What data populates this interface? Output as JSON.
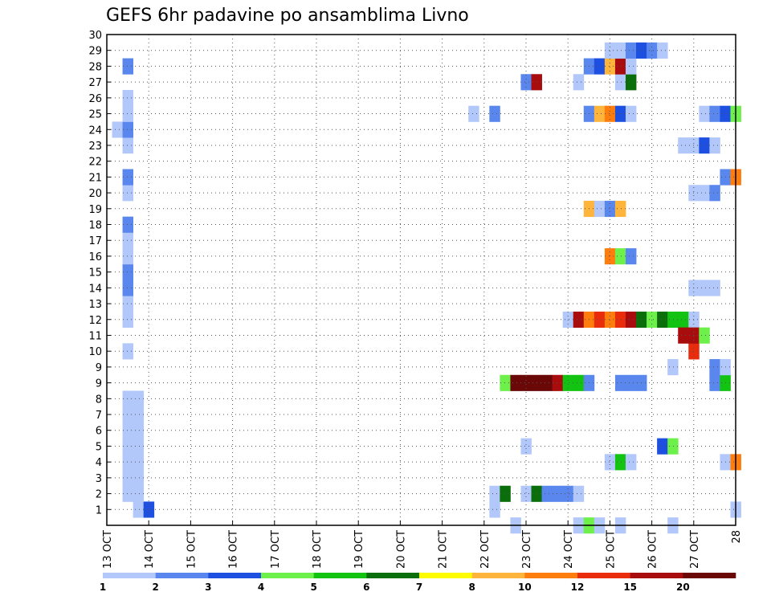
{
  "chart_data": {
    "type": "heatmap",
    "title": "GEFS 6hr padavine po ansamblima Livno",
    "x_labels": [
      "13 OCT",
      "14 OCT",
      "15 OCT",
      "16 OCT",
      "17 OCT",
      "18 OCT",
      "19 OCT",
      "20 OCT",
      "21 OCT",
      "22 OCT",
      "23 OCT",
      "24 OCT",
      "25 OCT",
      "26 OCT",
      "27 OCT",
      "28"
    ],
    "x_range": [
      0,
      60
    ],
    "y_labels": [
      "1",
      "2",
      "3",
      "4",
      "5",
      "6",
      "7",
      "8",
      "9",
      "9",
      "10",
      "11",
      "12",
      "13",
      "14",
      "15",
      "16",
      "17",
      "18",
      "19",
      "20",
      "21",
      "22",
      "23",
      "24",
      "25",
      "26",
      "27",
      "28",
      "29",
      "30"
    ],
    "y_range": [
      0,
      31
    ],
    "grid": true,
    "colorbar": {
      "labels": [
        "1",
        "2",
        "3",
        "4",
        "5",
        "6",
        "7",
        "8",
        "10",
        "12",
        "15",
        "20"
      ],
      "colors": [
        "#b3c8fa",
        "#5a87ee",
        "#1d4fe0",
        "#6ef04a",
        "#12c312",
        "#0a6e0a",
        "#fffc00",
        "#ffb43c",
        "#ff7d0c",
        "#e82c0c",
        "#a80c0c",
        "#6a0808"
      ]
    },
    "cells": [
      [
        3,
        1,
        1
      ],
      [
        4,
        1,
        3
      ],
      [
        2,
        2,
        1
      ],
      [
        3,
        2,
        1
      ],
      [
        2,
        3,
        1
      ],
      [
        3,
        3,
        1
      ],
      [
        2,
        4,
        1
      ],
      [
        3,
        4,
        1
      ],
      [
        2,
        5,
        1
      ],
      [
        3,
        5,
        1
      ],
      [
        2,
        6,
        1
      ],
      [
        3,
        6,
        1
      ],
      [
        2,
        7,
        1
      ],
      [
        3,
        7,
        1
      ],
      [
        2,
        8,
        1
      ],
      [
        3,
        8,
        1
      ],
      [
        2,
        11,
        1
      ],
      [
        2,
        13,
        1
      ],
      [
        2,
        14,
        1
      ],
      [
        2,
        15,
        2
      ],
      [
        2,
        16,
        2
      ],
      [
        2,
        17,
        1
      ],
      [
        2,
        18,
        1
      ],
      [
        2,
        19,
        2
      ],
      [
        2,
        21,
        1
      ],
      [
        2,
        22,
        2
      ],
      [
        2,
        24,
        1
      ],
      [
        1,
        25,
        1
      ],
      [
        2,
        25,
        2
      ],
      [
        2,
        26,
        1
      ],
      [
        2,
        27,
        1
      ],
      [
        2,
        29,
        2
      ],
      [
        39,
        0,
        1
      ],
      [
        37,
        1,
        1
      ],
      [
        37,
        2,
        1
      ],
      [
        38,
        2,
        6
      ],
      [
        40,
        2,
        1
      ],
      [
        41,
        2,
        6
      ],
      [
        42,
        2,
        2
      ],
      [
        43,
        2,
        2
      ],
      [
        44,
        2,
        2
      ],
      [
        45,
        2,
        1
      ],
      [
        40,
        5,
        1
      ],
      [
        38,
        9,
        4
      ],
      [
        39,
        9,
        12
      ],
      [
        40,
        9,
        12
      ],
      [
        41,
        9,
        12
      ],
      [
        42,
        9,
        12
      ],
      [
        43,
        9,
        11
      ],
      [
        44,
        9,
        5
      ],
      [
        45,
        9,
        5
      ],
      [
        46,
        9,
        2
      ],
      [
        49,
        9,
        2
      ],
      [
        50,
        9,
        2
      ],
      [
        51,
        9,
        2
      ],
      [
        45,
        0,
        1
      ],
      [
        46,
        0,
        4
      ],
      [
        47,
        0,
        1
      ],
      [
        49,
        0,
        1
      ],
      [
        48,
        4,
        1
      ],
      [
        49,
        4,
        5
      ],
      [
        50,
        4,
        1
      ],
      [
        44,
        13,
        1
      ],
      [
        45,
        13,
        11
      ],
      [
        46,
        13,
        9
      ],
      [
        47,
        13,
        10
      ],
      [
        48,
        13,
        9
      ],
      [
        49,
        13,
        10
      ],
      [
        50,
        13,
        11
      ],
      [
        51,
        13,
        6
      ],
      [
        52,
        13,
        4
      ],
      [
        53,
        13,
        6
      ],
      [
        54,
        13,
        5
      ],
      [
        55,
        13,
        5
      ],
      [
        56,
        13,
        1
      ],
      [
        48,
        17,
        9
      ],
      [
        49,
        17,
        4
      ],
      [
        50,
        17,
        2
      ],
      [
        46,
        20,
        8
      ],
      [
        47,
        20,
        1
      ],
      [
        48,
        20,
        2
      ],
      [
        49,
        20,
        8
      ],
      [
        35,
        26,
        1
      ],
      [
        37,
        26,
        2
      ],
      [
        46,
        26,
        2
      ],
      [
        47,
        26,
        8
      ],
      [
        48,
        26,
        9
      ],
      [
        49,
        26,
        3
      ],
      [
        50,
        26,
        1
      ],
      [
        40,
        28,
        2
      ],
      [
        41,
        28,
        11
      ],
      [
        45,
        28,
        1
      ],
      [
        49,
        28,
        1
      ],
      [
        50,
        28,
        6
      ],
      [
        46,
        29,
        2
      ],
      [
        47,
        29,
        3
      ],
      [
        48,
        29,
        8
      ],
      [
        49,
        29,
        11
      ],
      [
        50,
        29,
        1
      ],
      [
        48,
        30,
        1
      ],
      [
        49,
        30,
        1
      ],
      [
        50,
        30,
        2
      ],
      [
        51,
        30,
        3
      ],
      [
        52,
        30,
        2
      ],
      [
        53,
        30,
        1
      ],
      [
        54,
        0,
        1
      ],
      [
        54,
        10,
        1
      ],
      [
        56,
        11,
        10
      ],
      [
        55,
        12,
        11
      ],
      [
        56,
        12,
        11
      ],
      [
        57,
        12,
        4
      ],
      [
        56,
        15,
        1
      ],
      [
        57,
        15,
        1
      ],
      [
        58,
        15,
        1
      ],
      [
        58,
        10,
        2
      ],
      [
        58,
        9,
        2
      ],
      [
        59,
        9,
        5
      ],
      [
        59,
        10,
        1
      ],
      [
        53,
        5,
        3
      ],
      [
        54,
        5,
        4
      ],
      [
        56,
        21,
        1
      ],
      [
        57,
        21,
        1
      ],
      [
        58,
        21,
        2
      ],
      [
        55,
        24,
        1
      ],
      [
        56,
        24,
        1
      ],
      [
        57,
        24,
        3
      ],
      [
        58,
        24,
        1
      ],
      [
        57,
        26,
        1
      ],
      [
        58,
        26,
        2
      ],
      [
        59,
        26,
        3
      ],
      [
        60,
        26,
        4
      ],
      [
        59,
        22,
        2
      ],
      [
        60,
        22,
        9
      ],
      [
        59,
        4,
        1
      ],
      [
        60,
        4,
        9
      ],
      [
        60,
        1,
        1
      ]
    ]
  }
}
